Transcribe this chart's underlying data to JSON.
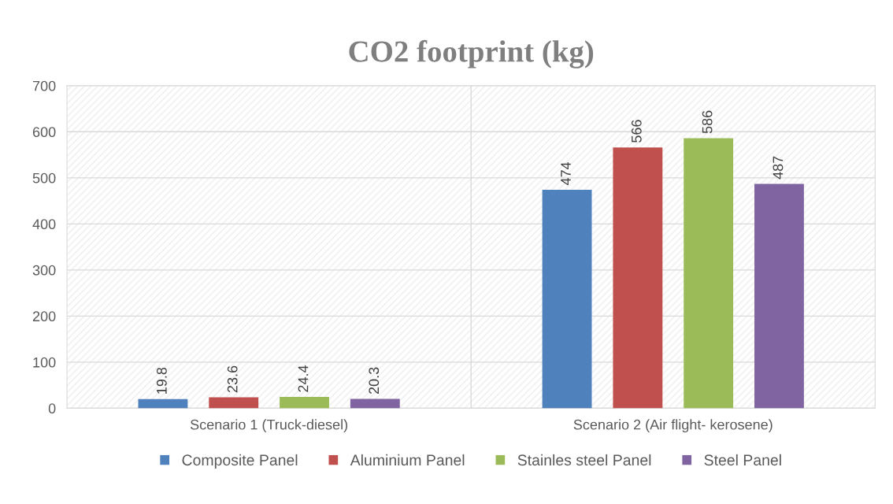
{
  "chart_data": {
    "type": "bar",
    "title": "CO2 footprint (kg)",
    "categories": [
      "Scenario 1 (Truck-diesel)",
      "Scenario 2 (Air flight- kerosene)"
    ],
    "series": [
      {
        "name": "Composite Panel",
        "color": "#4f81bd",
        "values": [
          19.8,
          474
        ]
      },
      {
        "name": "Aluminium Panel",
        "color": "#c0504d",
        "values": [
          23.6,
          566
        ]
      },
      {
        "name": "Stainles steel Panel",
        "color": "#9bbb59",
        "values": [
          24.4,
          586
        ]
      },
      {
        "name": "Steel Panel",
        "color": "#8064a2",
        "values": [
          20.3,
          487
        ]
      }
    ],
    "ylim": [
      0,
      700
    ],
    "yticks": [
      0,
      100,
      200,
      300,
      400,
      500,
      600,
      700
    ],
    "grid": "y",
    "legend": "bottom",
    "data_labels": true
  }
}
